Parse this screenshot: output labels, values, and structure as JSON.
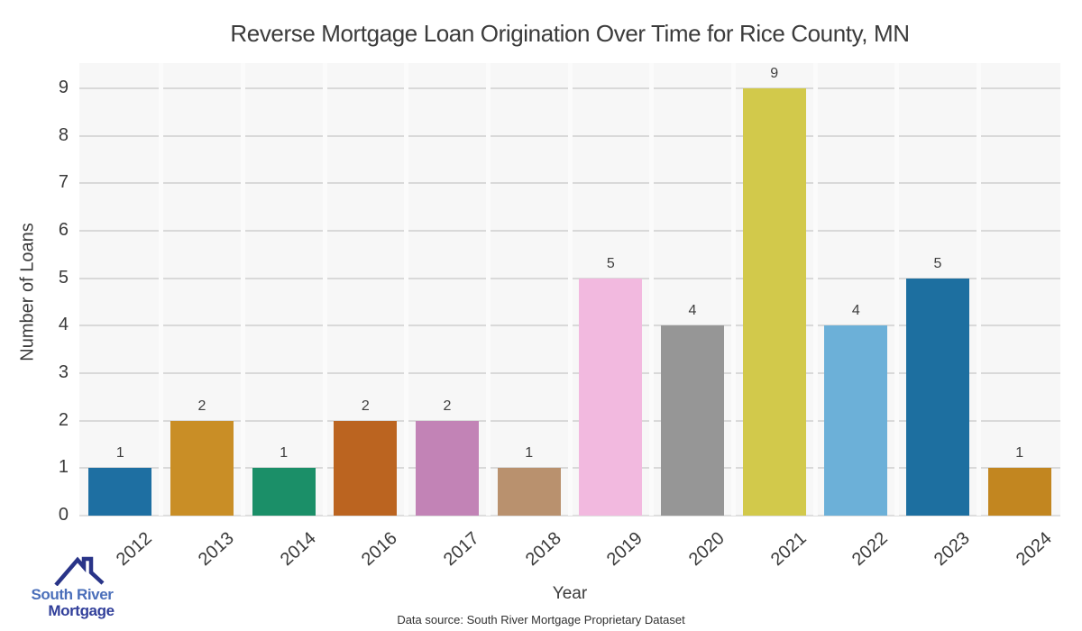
{
  "title": "Reverse Mortgage Loan Origination Over Time for Rice County, MN",
  "chart_data": {
    "type": "bar",
    "title": "Reverse Mortgage Loan Origination Over Time for Rice County, MN",
    "categories": [
      "2012",
      "2013",
      "2014",
      "2016",
      "2017",
      "2018",
      "2019",
      "2020",
      "2021",
      "2022",
      "2023",
      "2024"
    ],
    "values": [
      1,
      2,
      1,
      2,
      2,
      1,
      5,
      4,
      9,
      4,
      5,
      1
    ],
    "colors": [
      "#1e6fa2",
      "#c98e26",
      "#1b8f68",
      "#bb6420",
      "#c283b6",
      "#b9916e",
      "#f2b9df",
      "#969696",
      "#d2c94b",
      "#6cb0d8",
      "#1d6fa0",
      "#c28620"
    ],
    "xlabel": "Year",
    "ylabel": "Number of Loans",
    "ylim": [
      0,
      9.5
    ],
    "yticks": [
      0,
      1,
      2,
      3,
      4,
      5,
      6,
      7,
      8,
      9
    ],
    "grid": "horizontal",
    "legend": "none",
    "value_labels": true,
    "panel_background": "#f7f7f7",
    "gridline_color": "#d9d9d9"
  },
  "footer": {
    "source": "Data source: South River Mortgage Proprietary Dataset"
  },
  "logo": {
    "line1": "South River",
    "line2": "Mortgage",
    "line1_color": "#4a6fba",
    "line2_color": "#313f9a",
    "roof_color": "#293488"
  }
}
